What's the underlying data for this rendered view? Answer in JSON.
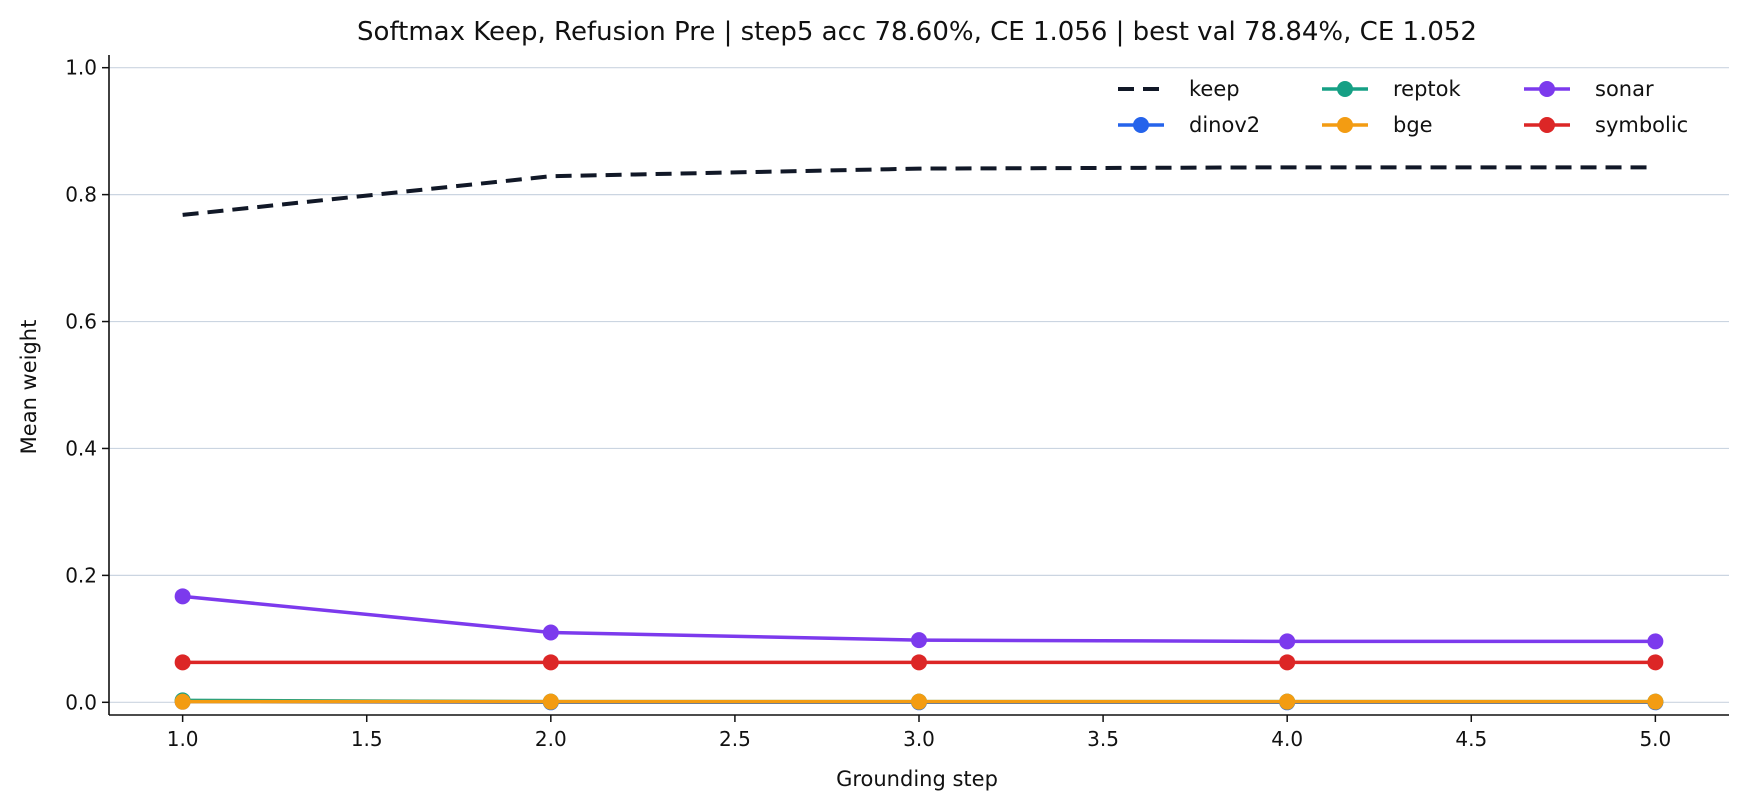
{
  "chart_data": {
    "type": "line",
    "title": "Softmax Keep, Refusion Pre | step5 acc 78.60%, CE 1.056 | best val 78.84%, CE 1.052",
    "xlabel": "Grounding step",
    "ylabel": "Mean weight",
    "xlim": [
      0.8,
      5.2
    ],
    "ylim": [
      -0.02,
      1.02
    ],
    "xticks": [
      "1.0",
      "1.5",
      "2.0",
      "2.5",
      "3.0",
      "3.5",
      "4.0",
      "4.5",
      "5.0"
    ],
    "yticks": [
      "0.0",
      "0.2",
      "0.4",
      "0.6",
      "0.8",
      "1.0"
    ],
    "grid": "horizontal",
    "legend_position": "top-right",
    "x": [
      1,
      2,
      3,
      4,
      5
    ],
    "series": [
      {
        "name": "keep",
        "color": "#111827",
        "dashed": true,
        "markers": false,
        "values": [
          0.768,
          0.829,
          0.841,
          0.843,
          0.843
        ]
      },
      {
        "name": "dinov2",
        "color": "#2563eb",
        "dashed": false,
        "markers": true,
        "values": [
          0.001,
          0.0,
          0.0,
          0.0,
          0.0
        ]
      },
      {
        "name": "reptok",
        "color": "#16a085",
        "dashed": false,
        "markers": true,
        "values": [
          0.003,
          0.001,
          0.001,
          0.001,
          0.001
        ]
      },
      {
        "name": "bge",
        "color": "#f39c12",
        "dashed": false,
        "markers": true,
        "values": [
          0.001,
          0.001,
          0.001,
          0.001,
          0.001
        ]
      },
      {
        "name": "sonar",
        "color": "#7c3aed",
        "dashed": false,
        "markers": true,
        "values": [
          0.167,
          0.11,
          0.098,
          0.096,
          0.096
        ]
      },
      {
        "name": "symbolic",
        "color": "#dc2626",
        "dashed": false,
        "markers": true,
        "values": [
          0.063,
          0.063,
          0.063,
          0.063,
          0.063
        ]
      }
    ]
  }
}
